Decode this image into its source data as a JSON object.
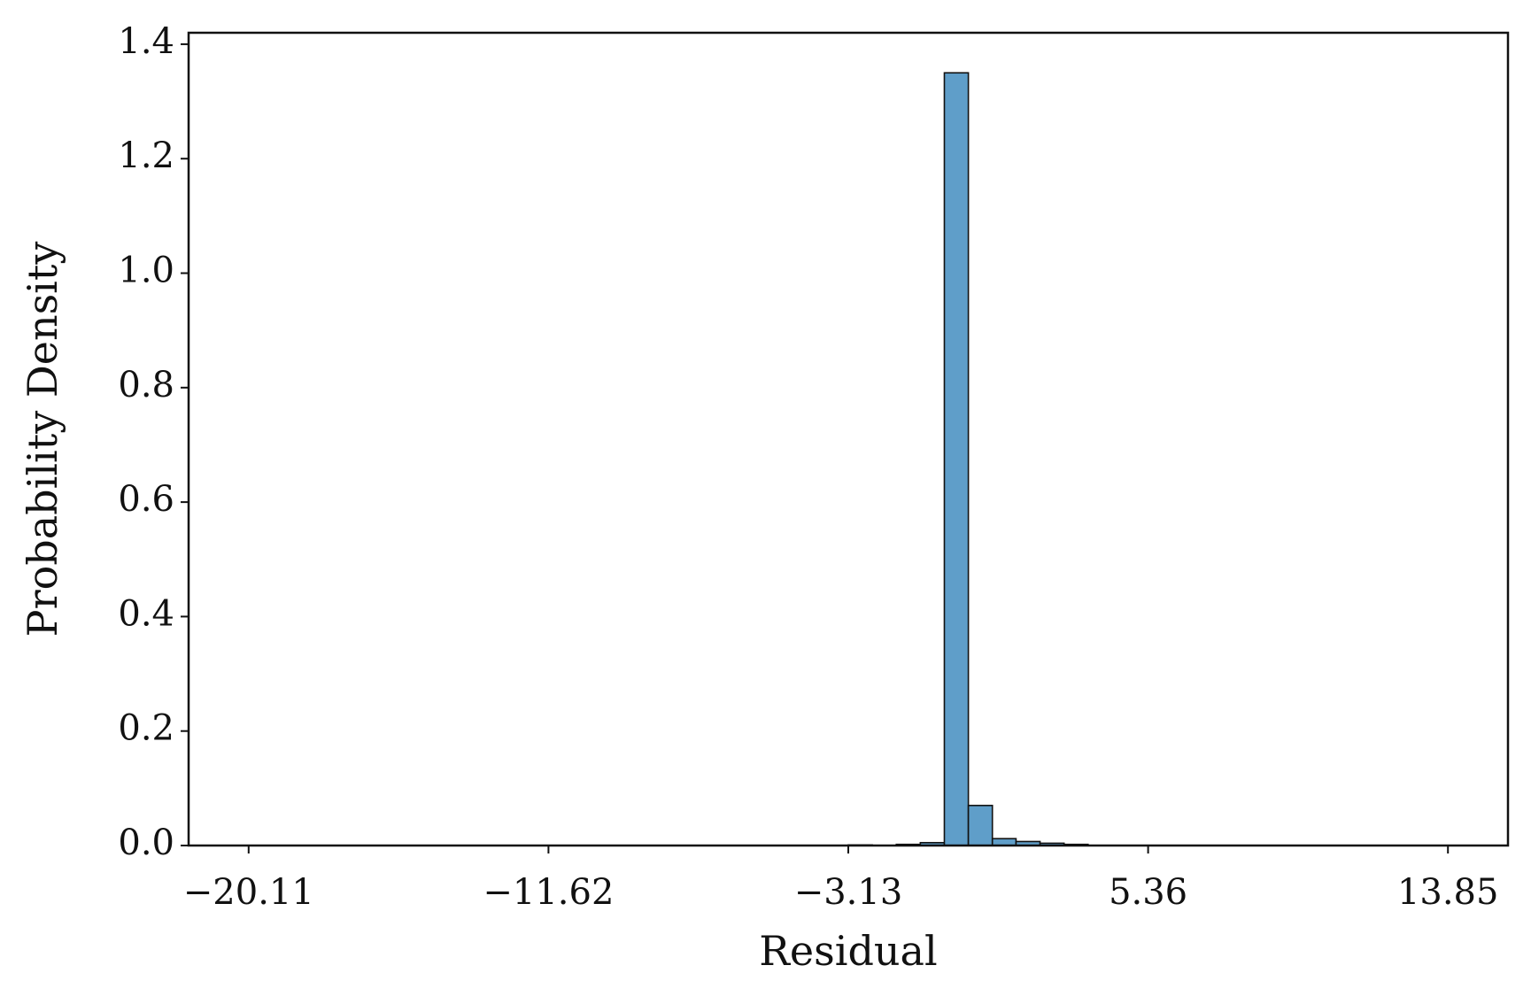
{
  "chart_data": {
    "type": "histogram",
    "x_label": "Residual",
    "y_label": "Probability Density",
    "bins": [
      -20.11,
      -19.43,
      -18.75,
      -18.07,
      -17.39,
      -16.71,
      -16.03,
      -15.36,
      -14.68,
      -14.0,
      -13.32,
      -12.64,
      -11.96,
      -11.28,
      -10.6,
      -9.92,
      -9.24,
      -8.56,
      -7.88,
      -7.21,
      -6.53,
      -5.85,
      -5.17,
      -4.49,
      -3.81,
      -3.13,
      -2.45,
      -1.77,
      -1.09,
      -0.41,
      0.27,
      0.95,
      1.62,
      2.3,
      2.98,
      3.66,
      4.34,
      5.02,
      5.7,
      6.38,
      7.06,
      7.74,
      8.42,
      9.1,
      9.77,
      10.45,
      11.13,
      11.81,
      12.49,
      13.17,
      13.85
    ],
    "values": [
      0,
      0,
      0,
      0,
      0,
      0,
      0,
      0,
      0,
      0,
      0,
      0,
      0,
      0,
      0,
      0,
      0,
      0,
      0,
      0,
      0,
      0,
      0,
      0,
      0,
      0.001,
      0,
      0.002,
      0.005,
      1.35,
      0.07,
      0.012,
      0.007,
      0.004,
      0.002,
      0,
      0,
      0,
      0,
      0,
      0,
      0,
      0,
      0,
      0,
      0,
      0,
      0,
      0,
      0
    ],
    "color": "#5f9ec9",
    "edge_color": "#111111",
    "xlim": [
      -21.81,
      15.55
    ],
    "xticks": [
      {
        "value": -20.11,
        "label": "−20.11"
      },
      {
        "value": -11.62,
        "label": "−11.62"
      },
      {
        "value": -3.13,
        "label": "−3.13"
      },
      5.36,
      13.85
    ],
    "ylim": [
      0,
      1.42
    ],
    "yticks": [
      {
        "value": 0,
        "label": "0.0"
      },
      0.2,
      0.4,
      0.6,
      0.8,
      {
        "value": 1,
        "label": "1.0"
      },
      1.2,
      1.4
    ],
    "grid": false
  }
}
